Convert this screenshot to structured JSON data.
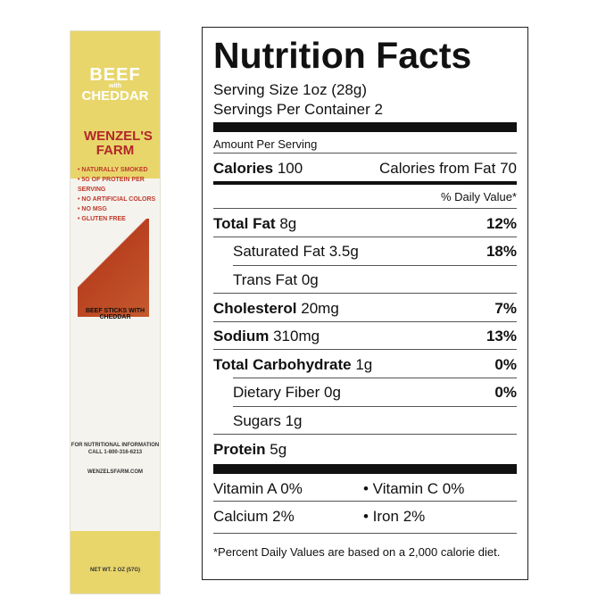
{
  "package": {
    "flavor_top": "BEEF",
    "flavor_mid": "with",
    "flavor_bottom": "CHEDDAR",
    "brand": "WENZEL'S FARM",
    "bullets": [
      "• NATURALLY SMOKED",
      "• 5G OF PROTEIN PER SERVING",
      "• NO ARTIFICIAL COLORS",
      "• NO MSG",
      "• GLUTEN FREE"
    ],
    "product_name": "BEEF STICKS WITH CHEDDAR",
    "contact": "FOR NUTRITIONAL INFORMATION CALL 1-800-316-6213",
    "website": "WENZELSFARM.COM",
    "net_wt": "NET WT. 2 OZ (57G)"
  },
  "label": {
    "title": "Nutrition Facts",
    "serving_size": "Serving Size 1oz (28g)",
    "servings": "Servings Per Container 2",
    "amount_per": "Amount Per Serving",
    "calories_label": "Calories",
    "calories": "100",
    "calories_fat": "Calories from Fat 70",
    "dv_header": "% Daily Value*",
    "rows": [
      {
        "name": "Total Fat",
        "amt": "8g",
        "dv": "12%"
      },
      {
        "name": "Saturated Fat 3.5g",
        "amt": "",
        "dv": "18%"
      },
      {
        "name": "Trans Fat 0g",
        "amt": "",
        "dv": ""
      },
      {
        "name": "Cholesterol",
        "amt": "20mg",
        "dv": "7%"
      },
      {
        "name": "Sodium",
        "amt": "310mg",
        "dv": "13%"
      },
      {
        "name": "Total Carbohydrate",
        "amt": "1g",
        "dv": "0%"
      },
      {
        "name": "Dietary Fiber 0g",
        "amt": "",
        "dv": "0%"
      },
      {
        "name": "Sugars 1g",
        "amt": "",
        "dv": ""
      },
      {
        "name": "Protein",
        "amt": "5g",
        "dv": ""
      }
    ],
    "vitamin_a": "Vitamin A 0%",
    "vitamin_c": "• Vitamin C 0%",
    "calcium": "Calcium 2%",
    "iron": "• Iron 2%",
    "footnote": "*Percent Daily Values are based on a 2,000 calorie diet."
  }
}
